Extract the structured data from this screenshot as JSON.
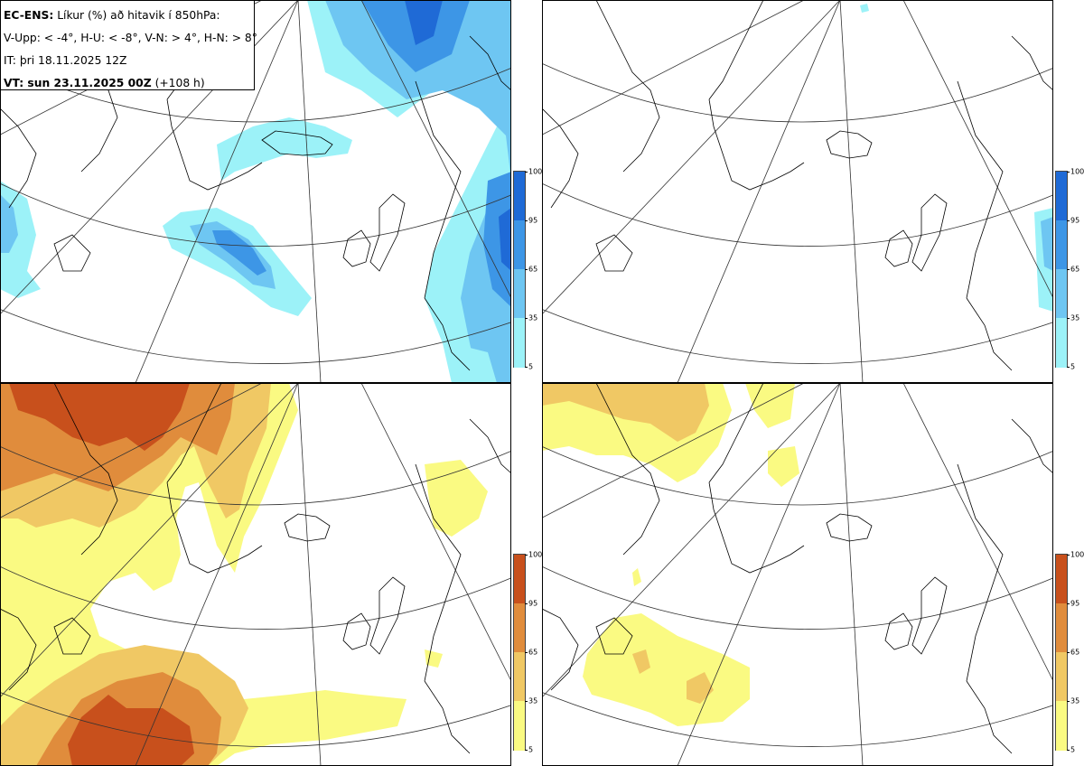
{
  "info": {
    "line1_bold": "EC-ENS:",
    "line1_rest": "Líkur (%) að hitavik í 850hPa:",
    "line2": "V-Upp: < -4°, H-U: < -8°, V-N: > 4°, H-N: > 8°",
    "line3": "IT: þri 18.11.2025 12Z",
    "line4_bold": "VT: sun 23.11.2025 00Z",
    "line4_rest": "(+108 h)"
  },
  "colorbars": {
    "cold": {
      "ticks": [
        "100",
        "95",
        "65",
        "35",
        "5"
      ],
      "colors": [
        "#1f6ad6",
        "#3d96e6",
        "#6ec6f2",
        "#9cf2f8"
      ]
    },
    "warm": {
      "ticks": [
        "100",
        "95",
        "65",
        "35",
        "5"
      ],
      "colors": [
        "#c8501c",
        "#e08c3c",
        "#f0c864",
        "#fafa82"
      ]
    }
  },
  "panels": [
    {
      "name": "cold-minus4",
      "scheme": "cold"
    },
    {
      "name": "cold-minus8",
      "scheme": "cold"
    },
    {
      "name": "warm-plus4",
      "scheme": "warm"
    },
    {
      "name": "warm-plus8",
      "scheme": "warm"
    }
  ]
}
